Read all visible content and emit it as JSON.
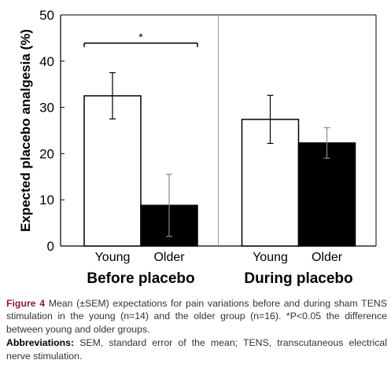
{
  "chart_data": {
    "type": "bar",
    "ylabel": "Expected placebo analgesia (%)",
    "ylim": [
      0,
      50
    ],
    "yticks": [
      "0",
      "10",
      "20",
      "30",
      "40",
      "50"
    ],
    "groups": [
      {
        "label": "Before placebo",
        "bars": [
          {
            "category": "Young",
            "value": 32.5,
            "sem": 5.0,
            "fill": "#ffffff"
          },
          {
            "category": "Older",
            "value": 8.8,
            "sem": 6.7,
            "fill": "#000000"
          }
        ]
      },
      {
        "label": "During placebo",
        "bars": [
          {
            "category": "Young",
            "value": 27.4,
            "sem": 5.2,
            "fill": "#ffffff"
          },
          {
            "category": "Older",
            "value": 22.3,
            "sem": 3.3,
            "fill": "#000000"
          }
        ]
      }
    ],
    "significance": {
      "symbol": "*",
      "value": 43.9
    }
  },
  "caption": {
    "figure_label": "Figure 4",
    "figure_text": " Mean (±SEM) expectations for pain variations before and during sham TENS stimulation in the young (n=14) and the older group (n=16). *P<0.05 the difference between young and older groups.",
    "abbr_label": "Abbreviations:",
    "abbr_text": " SEM, standard error of the mean; TENS, transcutaneous electrical nerve stimulation."
  }
}
